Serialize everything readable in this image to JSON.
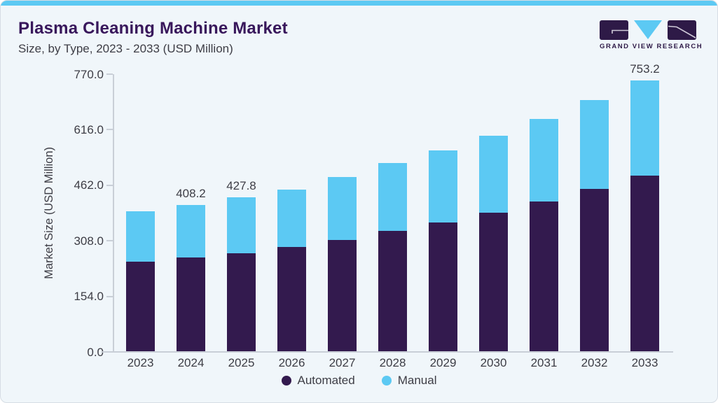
{
  "header": {
    "title": "Plasma Cleaning Machine Market",
    "subtitle": "Size, by Type, 2023 - 2033 (USD Million)"
  },
  "logo": {
    "text": "GRAND VIEW RESEARCH",
    "purple": "#2e1a47",
    "blue": "#5cc9f3"
  },
  "chart_data": {
    "type": "bar",
    "stacked": true,
    "title": "Plasma Cleaning Machine Market Size, by Type, 2023 - 2033 (USD Million)",
    "categories": [
      "2023",
      "2024",
      "2025",
      "2026",
      "2027",
      "2028",
      "2029",
      "2030",
      "2031",
      "2032",
      "2033"
    ],
    "series": [
      {
        "name": "Automated",
        "color": "#331a4e",
        "values": [
          249.4,
          262.7,
          274.0,
          291.9,
          311.0,
          336.3,
          359.6,
          385.5,
          416.5,
          451.1,
          488.1
        ]
      },
      {
        "name": "Manual",
        "color": "#5cc9f3",
        "values": [
          140.6,
          145.5,
          153.8,
          157.8,
          174.5,
          186.5,
          199.0,
          214.1,
          228.9,
          246.8,
          265.1
        ]
      }
    ],
    "totals": [
      390.0,
      408.2,
      427.8,
      449.7,
      485.5,
      522.8,
      558.6,
      599.6,
      645.4,
      697.9,
      753.2
    ],
    "total_labels": [
      "",
      "408.2",
      "427.8",
      "",
      "",
      "",
      "",
      "",
      "",
      "",
      "753.2"
    ],
    "ylabel": "Market Size (USD Million)",
    "yticks": [
      0,
      154,
      308,
      462,
      616,
      770
    ],
    "ytick_labels": [
      "0.0",
      "154.0",
      "308.0",
      "462.0",
      "616.0",
      "770.0"
    ],
    "ylim": [
      0,
      770
    ],
    "grid": false,
    "legend_position": "bottom"
  }
}
